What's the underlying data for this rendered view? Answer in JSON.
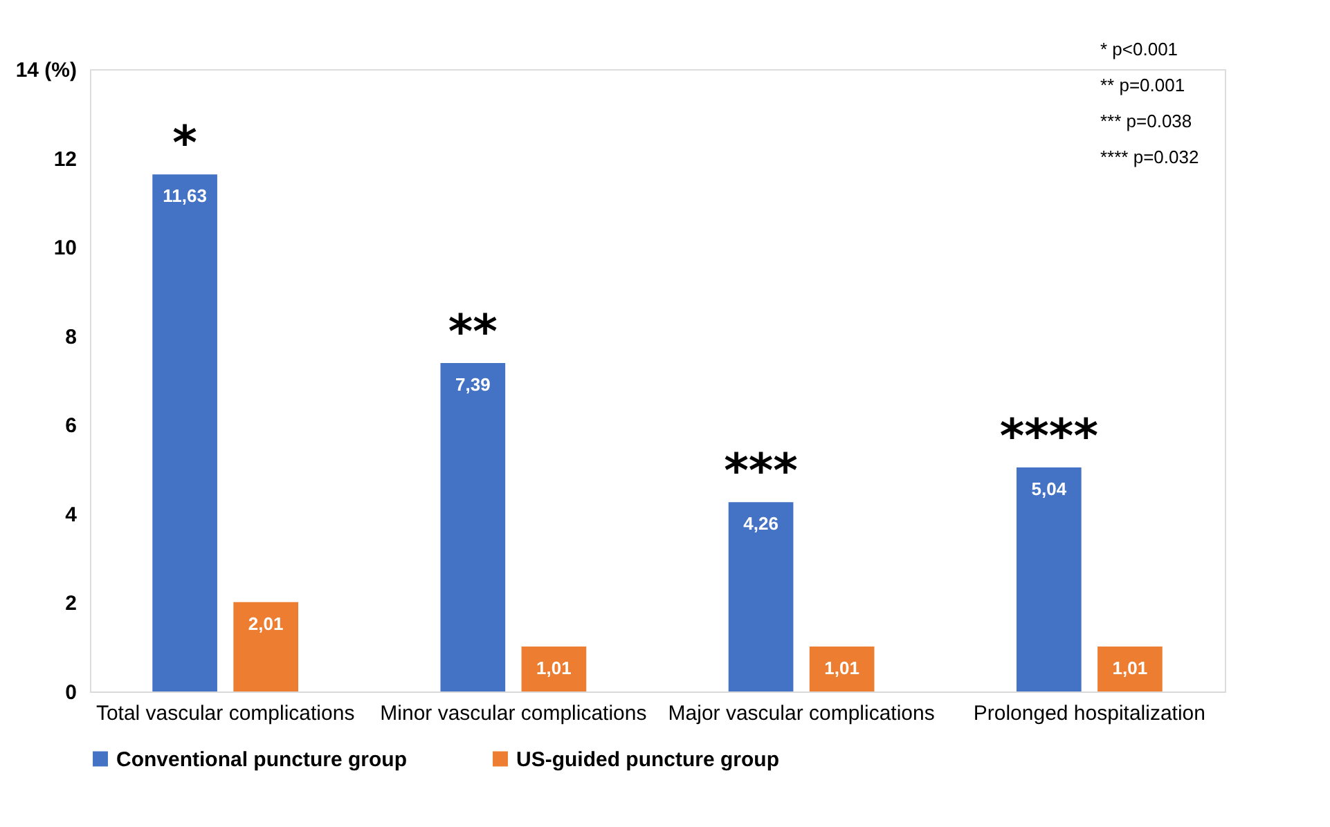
{
  "chart_data": {
    "type": "bar",
    "categories": [
      "Total vascular complications",
      "Minor vascular complications",
      "Major vascular complications",
      "Prolonged hospitalization"
    ],
    "series": [
      {
        "name": "Conventional puncture group",
        "color": "#4472c4",
        "values": [
          11.63,
          7.39,
          4.26,
          5.04
        ],
        "value_labels": [
          "11,63",
          "7,39",
          "4,26",
          "5,04"
        ]
      },
      {
        "name": "US-guided puncture group",
        "color": "#ed7d31",
        "values": [
          2.01,
          1.01,
          1.01,
          1.01
        ],
        "value_labels": [
          "2,01",
          "1,01",
          "1,01",
          "1,01"
        ]
      }
    ],
    "ylim": [
      0,
      14
    ],
    "yticks": [
      0,
      2,
      4,
      6,
      8,
      10,
      12,
      {
        "value": 14,
        "label": "14 (%)"
      }
    ],
    "grid": false,
    "legend": "bottom",
    "annotations": [
      "*",
      "**",
      "***",
      "****",
      "* p<0.001",
      "** p=0.001",
      "*** p=0.038",
      "**** p=0.032"
    ]
  }
}
